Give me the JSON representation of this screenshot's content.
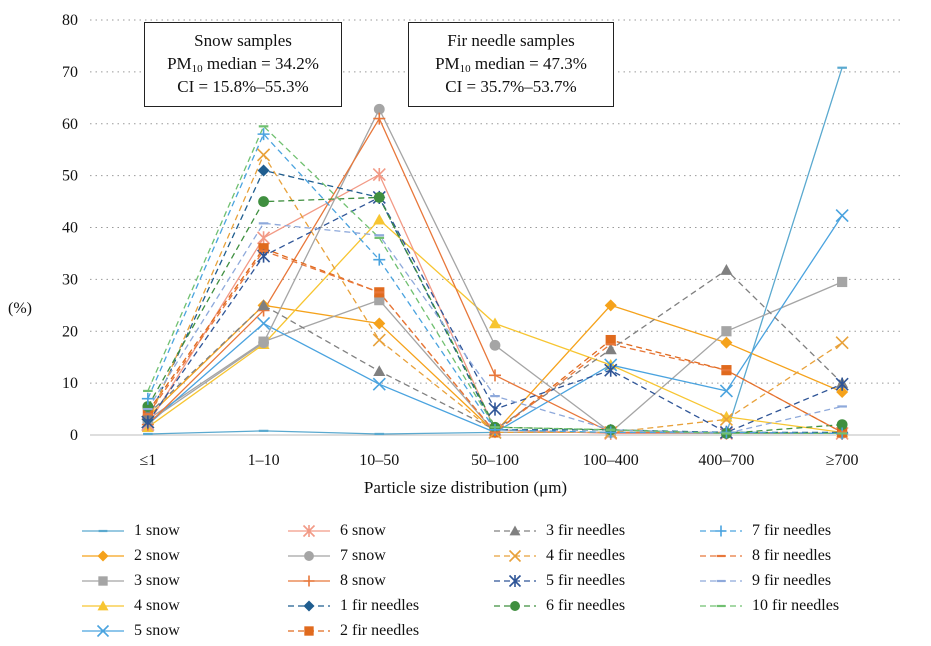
{
  "chart_data": {
    "type": "line",
    "categories": [
      "≤1",
      "1–10",
      "10–50",
      "50–100",
      "100–400",
      "400–700",
      "≥700"
    ],
    "xlabel": "Particle size distribution (μm)",
    "ylabel": "(%)",
    "ylim": [
      0,
      80
    ],
    "yticks": [
      0,
      10,
      20,
      30,
      40,
      50,
      60,
      70,
      80
    ],
    "grid": "horizontal dotted",
    "legend_placement": "bottom",
    "annotations": [
      {
        "title": "Snow samples",
        "line1_prefix": "PM",
        "line1_sub": "10",
        "line1_suffix": " median = 34.2%",
        "line2": "CI = 15.8%–55.3%"
      },
      {
        "title": "Fir needle samples",
        "line1_prefix": "PM",
        "line1_sub": "10",
        "line1_suffix": " median = 47.3%",
        "line2": "CI = 35.7%–53.7%"
      }
    ],
    "series": [
      {
        "name": "1 snow",
        "color": "#5aa9cf",
        "dashed": false,
        "marker": "dash",
        "values": [
          0.2,
          0.8,
          0.2,
          0.5,
          0.5,
          0.3,
          70.8
        ]
      },
      {
        "name": "2 snow",
        "color": "#f5a21b",
        "dashed": false,
        "marker": "diamond",
        "values": [
          3.5,
          25.0,
          21.5,
          0.5,
          25.0,
          17.8,
          8.3
        ]
      },
      {
        "name": "3 snow",
        "color": "#a5a5a5",
        "dashed": false,
        "marker": "square",
        "values": [
          3.0,
          18.0,
          26.0,
          0.5,
          0.5,
          20.0,
          29.5
        ]
      },
      {
        "name": "4 snow",
        "color": "#f7c531",
        "dashed": false,
        "marker": "triangle",
        "values": [
          1.5,
          17.5,
          41.5,
          21.5,
          13.5,
          3.5,
          0.5
        ]
      },
      {
        "name": "5 snow",
        "color": "#4aa3df",
        "dashed": false,
        "marker": "x",
        "values": [
          2.0,
          21.5,
          9.8,
          0.5,
          13.5,
          8.5,
          42.3
        ]
      },
      {
        "name": "6 snow",
        "color": "#f29a86",
        "dashed": false,
        "marker": "asterisk",
        "values": [
          2.0,
          38.0,
          50.2,
          1.0,
          0.3,
          0.3,
          0.3
        ]
      },
      {
        "name": "7 snow",
        "color": "#a5a5a5",
        "dashed": false,
        "marker": "circle",
        "values": [
          2.5,
          17.8,
          62.8,
          17.3,
          0.5,
          0.3,
          0.3
        ]
      },
      {
        "name": "8 snow",
        "color": "#e8773a",
        "dashed": false,
        "marker": "plus",
        "values": [
          2.0,
          24.0,
          61.0,
          11.5,
          0.5,
          0.5,
          0.3
        ]
      },
      {
        "name": "1 fir needles",
        "color": "#1f5d8f",
        "dashed": true,
        "marker": "diamond",
        "values": [
          3.0,
          51.0,
          45.8,
          1.0,
          1.0,
          0.5,
          0.5
        ]
      },
      {
        "name": "2 fir needles",
        "color": "#e06a1e",
        "dashed": true,
        "marker": "square",
        "values": [
          4.5,
          36.0,
          27.5,
          0.5,
          18.3,
          12.5,
          0.5
        ]
      },
      {
        "name": "3 fir needles",
        "color": "#808080",
        "dashed": true,
        "marker": "triangle",
        "values": [
          4.0,
          25.0,
          12.3,
          1.0,
          16.5,
          31.8,
          10.0
        ]
      },
      {
        "name": "4 fir needles",
        "color": "#e8a13a",
        "dashed": true,
        "marker": "x",
        "values": [
          2.5,
          54.0,
          18.3,
          0.5,
          0.5,
          3.0,
          17.8
        ]
      },
      {
        "name": "5 fir needles",
        "color": "#2f5597",
        "dashed": true,
        "marker": "asterisk",
        "values": [
          2.5,
          34.5,
          45.8,
          5.0,
          12.5,
          0.5,
          9.8
        ]
      },
      {
        "name": "6 fir needles",
        "color": "#3f8f3f",
        "dashed": true,
        "marker": "circle",
        "values": [
          5.5,
          45.0,
          45.8,
          1.5,
          1.0,
          0.3,
          2.0
        ]
      },
      {
        "name": "7 fir needles",
        "color": "#4aa3df",
        "dashed": true,
        "marker": "plus",
        "values": [
          7.0,
          58.0,
          33.8,
          1.0,
          0.5,
          0.5,
          0.3
        ]
      },
      {
        "name": "8 fir needles",
        "color": "#e8773a",
        "dashed": true,
        "marker": "dash",
        "values": [
          4.0,
          35.5,
          27.5,
          0.5,
          17.5,
          12.5,
          0.5
        ]
      },
      {
        "name": "9 fir needles",
        "color": "#8ea9db",
        "dashed": true,
        "marker": "dash",
        "values": [
          5.0,
          40.8,
          38.5,
          7.5,
          1.0,
          0.3,
          5.5
        ]
      },
      {
        "name": "10 fir needles",
        "color": "#70c070",
        "dashed": true,
        "marker": "dash",
        "values": [
          8.5,
          59.5,
          38.0,
          1.5,
          1.0,
          0.3,
          0.3
        ]
      }
    ]
  }
}
